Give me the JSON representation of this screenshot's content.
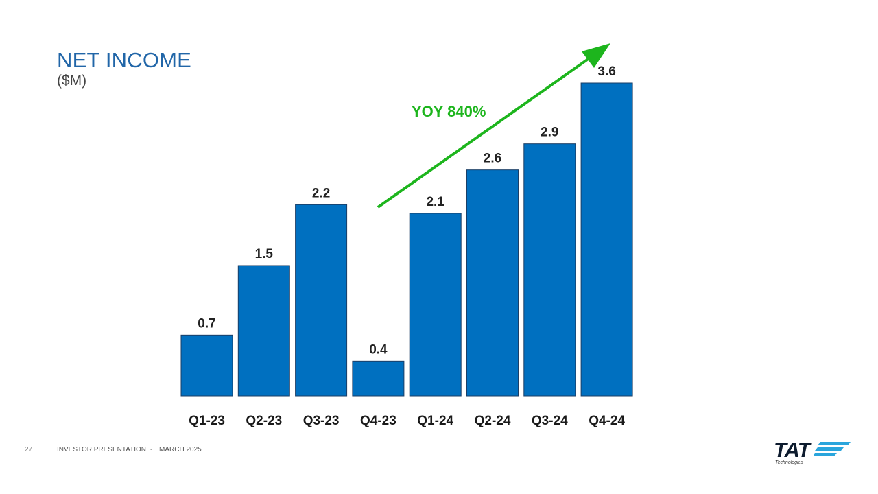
{
  "header": {
    "title": "NET INCOME",
    "subtitle": "($M)"
  },
  "footer": {
    "page_number": "27",
    "presentation": "INVESTOR PRESENTATION",
    "separator": "-",
    "date": "MARCH 2025"
  },
  "logo": {
    "word": "TAT",
    "sub": "Technologies",
    "stripe_color": "#2aa5dc"
  },
  "annotation": {
    "text": "YOY 840%",
    "color": "#1db51d"
  },
  "chart_data": {
    "type": "bar",
    "title": "NET INCOME",
    "ylabel": "($M)",
    "xlabel": "",
    "categories": [
      "Q1-23",
      "Q2-23",
      "Q3-23",
      "Q4-23",
      "Q1-24",
      "Q2-24",
      "Q3-24",
      "Q4-24"
    ],
    "values": [
      0.7,
      1.5,
      2.2,
      0.4,
      2.1,
      2.6,
      2.9,
      3.6
    ],
    "value_labels": [
      "0.7",
      "1.5",
      "2.2",
      "0.4",
      "2.1",
      "2.6",
      "2.9",
      "3.6"
    ],
    "ylim": [
      0,
      3.6
    ],
    "grid": false,
    "legend": "none",
    "bar_color": "#0070c0",
    "bar_edge_color": "#1a3e66"
  }
}
